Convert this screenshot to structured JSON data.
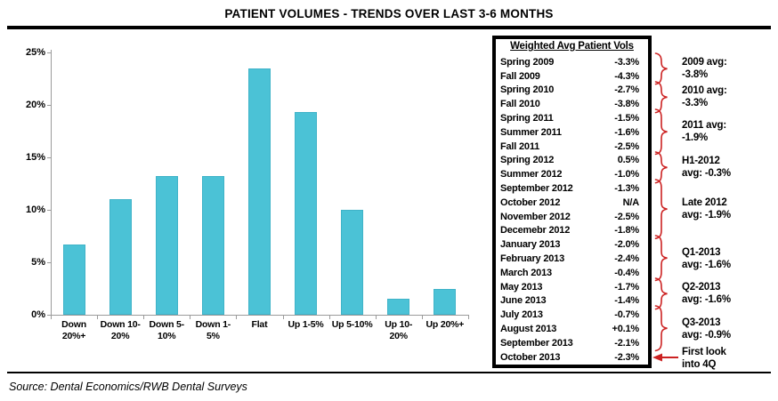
{
  "title": "PATIENT VOLUMES - TRENDS OVER LAST 3-6 MONTHS",
  "source": "Source: Dental Economics/RWB Dental Surveys",
  "colors": {
    "bar": "#4BC2D6",
    "annotation_red": "#CC2222",
    "axis_gray": "#9B9B9B"
  },
  "chart_data": {
    "type": "bar",
    "title": "PATIENT VOLUMES - TRENDS OVER LAST 3-6 MONTHS",
    "categories": [
      "Down 20%+",
      "Down 10-20%",
      "Down 5-10%",
      "Down 1-5%",
      "Flat",
      "Up 1-5%",
      "Up 5-10%",
      "Up 10-20%",
      "Up 20%+"
    ],
    "cat_labels": [
      "Down\n20%+",
      "Down 10-\n20%",
      "Down 5-\n10%",
      "Down 1-\n5%",
      "Flat",
      "Up 1-5%",
      "Up 5-10%",
      "Up 10-\n20%",
      "Up 20%+"
    ],
    "values": [
      6.7,
      11.0,
      13.2,
      13.2,
      23.5,
      19.3,
      10.0,
      1.5,
      2.5
    ],
    "xlabel": "",
    "ylabel": "",
    "ylim": [
      0,
      25
    ],
    "ytick_labels": [
      "0%",
      "5%",
      "10%",
      "15%",
      "20%",
      "25%"
    ],
    "yticks": [
      0,
      5,
      10,
      15,
      20,
      25
    ],
    "grid": false,
    "legend": "none"
  },
  "table": {
    "header": "Weighted Avg Patient Vols",
    "rows": [
      {
        "period": "Spring 2009",
        "value": "-3.3%"
      },
      {
        "period": "Fall 2009",
        "value": "-4.3%"
      },
      {
        "period": "Spring 2010",
        "value": "-2.7%"
      },
      {
        "period": "Fall 2010",
        "value": "-3.8%"
      },
      {
        "period": "Spring 2011",
        "value": "-1.5%"
      },
      {
        "period": "Summer 2011",
        "value": "-1.6%"
      },
      {
        "period": "Fall 2011",
        "value": "-2.5%"
      },
      {
        "period": "Spring 2012",
        "value": "0.5%"
      },
      {
        "period": "Summer 2012",
        "value": "-1.0%"
      },
      {
        "period": "September 2012",
        "value": "-1.3%"
      },
      {
        "period": "October 2012",
        "value": "N/A"
      },
      {
        "period": "November 2012",
        "value": "-2.5%"
      },
      {
        "period": "Decemebr 2012",
        "value": "-1.8%"
      },
      {
        "period": "January 2013",
        "value": "-2.0%"
      },
      {
        "period": "February 2013",
        "value": "-2.4%"
      },
      {
        "period": "March 2013",
        "value": "-0.4%"
      },
      {
        "period": "May 2013",
        "value": "-1.7%"
      },
      {
        "period": "June 2013",
        "value": "-1.4%"
      },
      {
        "period": "July 2013",
        "value": "-0.7%"
      },
      {
        "period": "August 2013",
        "value": "+0.1%"
      },
      {
        "period": "September 2013",
        "value": "-2.1%"
      },
      {
        "period": "October 2013",
        "value": "-2.3%"
      }
    ]
  },
  "annotations": [
    {
      "type": "brace",
      "label": "2009 avg:\n-3.8%",
      "row_start": 1,
      "row_end": 2
    },
    {
      "type": "brace",
      "label": "2010 avg:\n-3.3%",
      "row_start": 3,
      "row_end": 4
    },
    {
      "type": "brace",
      "label": "2011 avg:\n-1.9%",
      "row_start": 5,
      "row_end": 7
    },
    {
      "type": "brace",
      "label": "H1-2012\navg: -0.3%",
      "row_start": 8,
      "row_end": 9
    },
    {
      "type": "brace",
      "label": "Late 2012\navg: -1.9%",
      "row_start": 10,
      "row_end": 13
    },
    {
      "type": "brace",
      "label": "Q1-2013\navg: -1.6%",
      "row_start": 14,
      "row_end": 16
    },
    {
      "type": "brace",
      "label": "Q2-2013\navg: -1.6%",
      "row_start": 17,
      "row_end": 18
    },
    {
      "type": "brace",
      "label": "Q3-2013\navg: -0.9%",
      "row_start": 19,
      "row_end": 21
    },
    {
      "type": "arrow",
      "label": "First look\ninto 4Q",
      "row_start": 22,
      "row_end": 22
    }
  ]
}
